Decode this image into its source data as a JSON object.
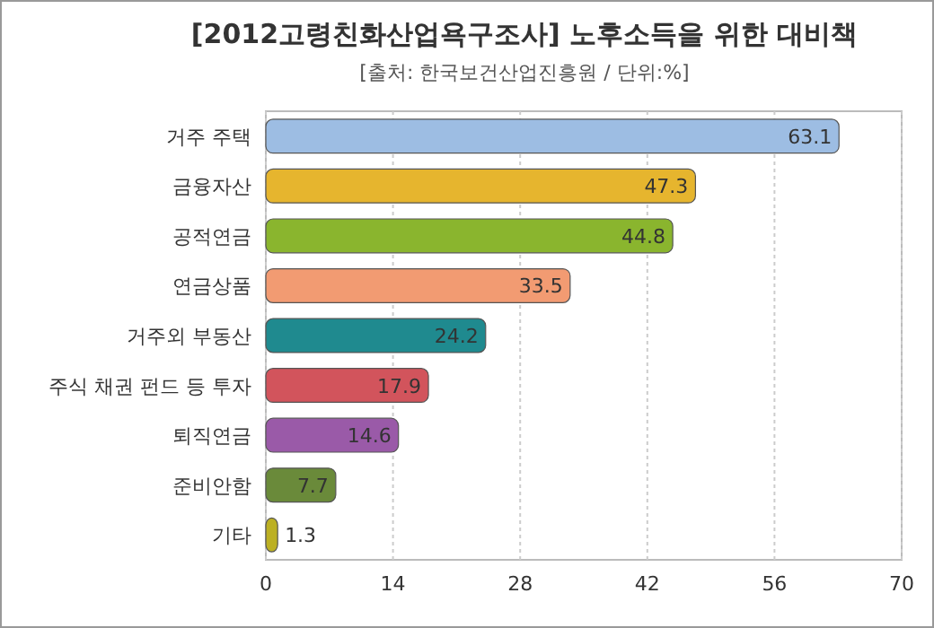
{
  "chart_data": {
    "type": "bar",
    "orientation": "horizontal",
    "title": "[2012고령친화산업욕구조사] 노후소득을 위한 대비책",
    "subtitle": "[출처: 한국보건산업진흥원 / 단위:%]",
    "categories": [
      "거주 주택",
      "금융자산",
      "공적연금",
      "연금상품",
      "거주외 부동산",
      "주식 채권 펀드 등 투자",
      "퇴직연금",
      "준비안함",
      "기타"
    ],
    "values": [
      63.1,
      47.3,
      44.8,
      33.5,
      24.2,
      17.9,
      14.6,
      7.7,
      1.3
    ],
    "colors": [
      "#9dbde3",
      "#e6b52e",
      "#8ab52e",
      "#f29b72",
      "#1f8a8f",
      "#d2545c",
      "#9a5aa8",
      "#6a8a3a",
      "#bcb023"
    ],
    "xlim": [
      0,
      70
    ],
    "xticks": [
      0,
      14,
      28,
      42,
      56,
      70
    ],
    "grid": "x",
    "data_labels": true
  }
}
